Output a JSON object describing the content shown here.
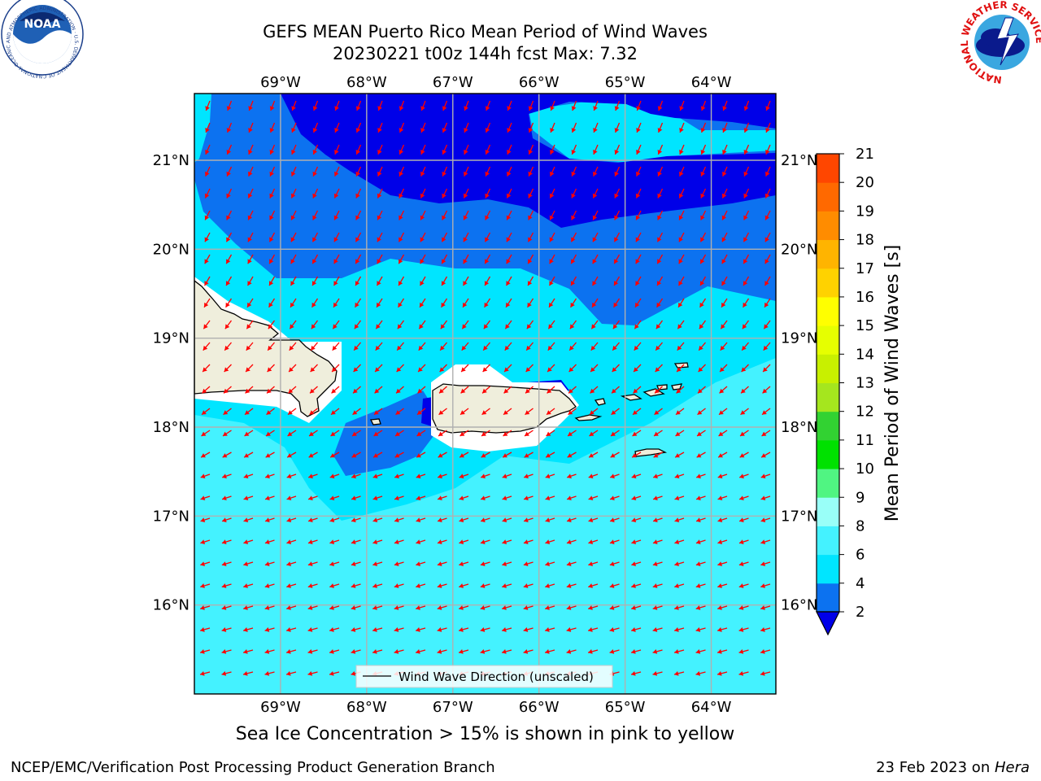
{
  "header": {
    "title_line1": "GEFS MEAN Puerto Rico Mean Period of Wind Waves",
    "title_line2": "20230221 t00z 144h fcst   Max: 7.32"
  },
  "map": {
    "lon_range": [
      -70,
      -63.25
    ],
    "lat_range": [
      15,
      21.75
    ],
    "lon_ticks": [
      -69,
      -68,
      -67,
      -66,
      -65,
      -64
    ],
    "lat_ticks": [
      16,
      17,
      18,
      19,
      20,
      21
    ],
    "lon_tick_labels": [
      "69°W",
      "68°W",
      "67°W",
      "66°W",
      "65°W",
      "64°W"
    ],
    "lat_tick_labels": [
      "16°N",
      "17°N",
      "18°N",
      "19°N",
      "20°N",
      "21°N"
    ],
    "land_color": "#efeedc",
    "vector_color": "#ff0000",
    "grid_color": "#b0b0b0"
  },
  "legend": {
    "label": "Wind Wave Direction (unscaled)"
  },
  "colorbar": {
    "label": "Mean Period of Wind Waves [s]",
    "levels": [
      2,
      3,
      4,
      5,
      6,
      7,
      8,
      9,
      10,
      11,
      12,
      13,
      14,
      15,
      16,
      17,
      18,
      19,
      20,
      21
    ],
    "tick_labels": [
      "2",
      "4",
      "6",
      "8",
      "9",
      "10",
      "11",
      "12",
      "13",
      "14",
      "15",
      "16",
      "17",
      "18",
      "19",
      "20",
      "21"
    ],
    "tick_values": [
      2,
      4,
      6,
      8,
      9,
      10,
      11,
      12,
      13,
      14,
      15,
      16,
      17,
      18,
      19,
      20,
      21
    ],
    "colors": [
      "#0c72f0",
      "#00e5ff",
      "#44f2ff",
      "#99fff8",
      "#50f582",
      "#00e100",
      "#32d232",
      "#a5e61e",
      "#c8f000",
      "#e6ff00",
      "#ffff00",
      "#ffd200",
      "#ffb400",
      "#ff8c00",
      "#ff6900",
      "#ff4600",
      "#ff0000"
    ],
    "under_color": "#0000e8"
  },
  "shading": {
    "deep_blue": "#0000e8",
    "blue": "#0c72f0",
    "cyan": "#00e5ff",
    "light_cyan": "#44f2ff"
  },
  "note": "Sea Ice Concentration > 15% is shown in pink to yellow",
  "footer": {
    "left": "NCEP/EMC/Verification Post Processing Product Generation Branch",
    "right_prefix": "23 Feb 2023 on ",
    "right_host": "Hera"
  },
  "logos": {
    "noaa_text": "NOAA",
    "noaa_ring_text": "NATIONAL OCEANIC AND ATMOSPHERIC ADMINISTRATION · U.S. DEPARTMENT OF COMMERCE",
    "nws_ring_text": "NATIONAL WEATHER SERVICE"
  }
}
